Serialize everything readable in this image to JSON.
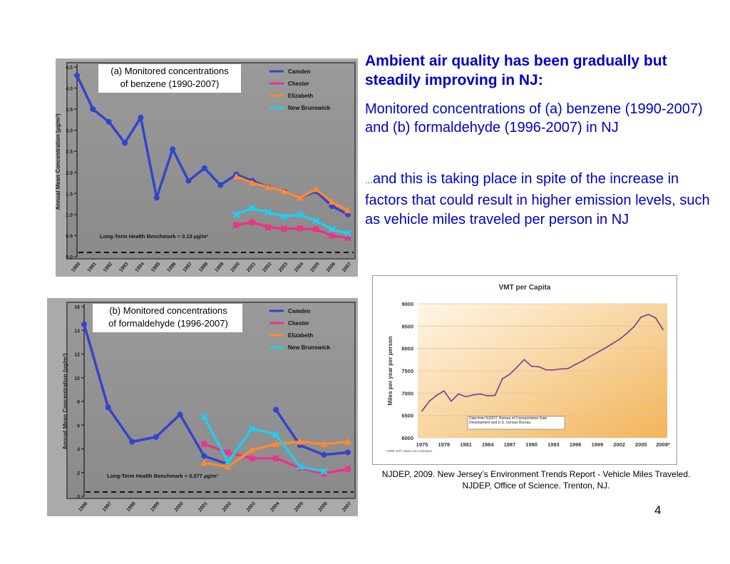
{
  "heading": "Ambient air quality has been gradually but steadily improving in NJ:",
  "subheading": "Monitored concentrations of (a) benzene (1990-2007) and (b) formaldehyde (1996-2007) in NJ",
  "body_ellipsis": "…",
  "body": "and this is taking place in spite of the increase in factors that could result in higher emission levels, such as vehicle miles traveled per person in NJ",
  "citation": "NJDEP, 2009. New Jersey’s Environment Trends Report - Vehicle Miles Traveled.  NJDEP, Office of Science. Trenton, NJ.",
  "page_number": "4",
  "colors": {
    "camden": "#3344cc",
    "chester": "#ee3388",
    "elizabeth": "#ff8833",
    "new_brunswick": "#22ccee",
    "vmt_line": "#7a3b8f",
    "heading": "#0000cc"
  },
  "chart_data": [
    {
      "type": "line",
      "caption": "(a) Monitored concentrations of benzene (1990-2007)",
      "ylabel": "Annual Mean Concentration (µg/m³)",
      "ylim": [
        0,
        4.5
      ],
      "yticks": [
        "0.0",
        "0.5",
        "1.0",
        "1.5",
        "2.0",
        "2.5",
        "3.0",
        "3.5",
        "4.0",
        "4.5"
      ],
      "x": [
        1990,
        1991,
        1992,
        1993,
        1994,
        1995,
        1996,
        1997,
        1998,
        1999,
        2000,
        2001,
        2002,
        2003,
        2004,
        2005,
        2006,
        2007
      ],
      "benchmark_label": "Long-Term Health Benchmark = 0.13 µg/m³",
      "benchmark": 0.13,
      "legend_position": "top-right",
      "series": [
        {
          "name": "Camden",
          "key": "camden",
          "x": [
            1990,
            1991,
            1992,
            1993,
            1994,
            1995,
            1996,
            1997,
            1998,
            1999,
            2000,
            2001,
            2002,
            2003,
            2004,
            2005,
            2006,
            2007
          ],
          "values": [
            4.3,
            3.5,
            3.2,
            2.7,
            3.3,
            1.4,
            2.55,
            1.8,
            2.1,
            1.7,
            1.95,
            1.8,
            1.65,
            1.55,
            1.4,
            1.55,
            1.2,
            1.0
          ]
        },
        {
          "name": "Chester",
          "key": "chester",
          "x": [
            2000,
            2001,
            2002,
            2003,
            2004,
            2005,
            2006,
            2007
          ],
          "values": [
            0.75,
            0.82,
            0.7,
            0.66,
            0.67,
            0.65,
            0.5,
            0.45
          ]
        },
        {
          "name": "Elizabeth",
          "key": "elizabeth",
          "x": [
            2000,
            2001,
            2002,
            2003,
            2004,
            2005,
            2006,
            2007
          ],
          "values": [
            1.9,
            1.75,
            1.65,
            1.55,
            1.4,
            1.6,
            1.3,
            1.1
          ]
        },
        {
          "name": "New Brunswick",
          "key": "new_brunswick",
          "x": [
            2000,
            2001,
            2002,
            2003,
            2004,
            2005,
            2006,
            2007
          ],
          "values": [
            1.0,
            1.15,
            1.05,
            0.95,
            1.0,
            0.85,
            0.65,
            0.55
          ]
        }
      ]
    },
    {
      "type": "line",
      "caption": "(b) Monitored concentrations of formaldehyde (1996-2007)",
      "ylabel": "Annual Mean Concentration (µg/m³)",
      "ylim": [
        0,
        16
      ],
      "yticks": [
        "0",
        "2",
        "4",
        "6",
        "8",
        "10",
        "12",
        "14",
        "16"
      ],
      "x": [
        1996,
        1997,
        1998,
        1999,
        2000,
        2001,
        2002,
        2003,
        2004,
        2005,
        2006,
        2007
      ],
      "benchmark_label": "Long-Term Health Benchmark = 0.077 µg/m³",
      "benchmark": 0.077,
      "legend_position": "top-right",
      "series": [
        {
          "name": "Camden",
          "key": "camden",
          "x": [
            1996,
            1997,
            1998,
            1999,
            2000,
            2001,
            2002,
            2003,
            2004,
            2005,
            2006,
            2007
          ],
          "values": [
            14.5,
            7.5,
            4.6,
            5.0,
            6.9,
            3.4,
            2.7,
            null,
            7.3,
            4.3,
            3.5,
            3.7
          ]
        },
        {
          "name": "Chester",
          "key": "chester",
          "x": [
            2001,
            2002,
            2003,
            2004,
            2005,
            2006,
            2007
          ],
          "values": [
            4.4,
            3.7,
            3.2,
            3.2,
            2.4,
            1.9,
            2.3
          ]
        },
        {
          "name": "Elizabeth",
          "key": "elizabeth",
          "x": [
            2001,
            2002,
            2003,
            2004,
            2005,
            2006,
            2007
          ],
          "values": [
            2.8,
            2.5,
            3.9,
            4.4,
            4.6,
            4.4,
            4.6
          ]
        },
        {
          "name": "New Brunswick",
          "key": "new_brunswick",
          "x": [
            2001,
            2002,
            2003,
            2004,
            2005,
            2006,
            2007
          ],
          "values": [
            6.7,
            2.9,
            5.7,
            5.2,
            2.5,
            2.1,
            null
          ]
        }
      ]
    },
    {
      "type": "line",
      "title": "VMT per Capita",
      "ylabel": "Miles per year per person",
      "ylim": [
        6000,
        9000
      ],
      "yticks": [
        "6000",
        "6500",
        "7000",
        "7500",
        "8000",
        "8500",
        "9000"
      ],
      "xticks": [
        "1975",
        "1978",
        "1981",
        "1984",
        "1987",
        "1990",
        "1993",
        "1996",
        "1999",
        "2002",
        "2005",
        "2008*"
      ],
      "xlim": [
        1975,
        2008
      ],
      "source_note": "Data from NJDOT, Bureau of Transportation Data Development and U.S. Census Bureau",
      "footnote": "* 2008 VMT values are estimates",
      "series": [
        {
          "name": "VMT per capita",
          "key": "vmt",
          "x": [
            1975,
            1976,
            1977,
            1978,
            1979,
            1980,
            1981,
            1982,
            1983,
            1984,
            1985,
            1986,
            1987,
            1988,
            1989,
            1990,
            1991,
            1992,
            1993,
            1994,
            1995,
            1996,
            1997,
            1998,
            1999,
            2000,
            2001,
            2002,
            2003,
            2004,
            2005,
            2006,
            2007,
            2008
          ],
          "values": [
            6600,
            6820,
            6950,
            7050,
            6820,
            6980,
            6920,
            6960,
            6980,
            6940,
            6950,
            7320,
            7420,
            7580,
            7750,
            7600,
            7590,
            7520,
            7520,
            7540,
            7550,
            7640,
            7720,
            7820,
            7910,
            8000,
            8100,
            8200,
            8330,
            8480,
            8700,
            8760,
            8680,
            8420
          ]
        }
      ]
    }
  ]
}
